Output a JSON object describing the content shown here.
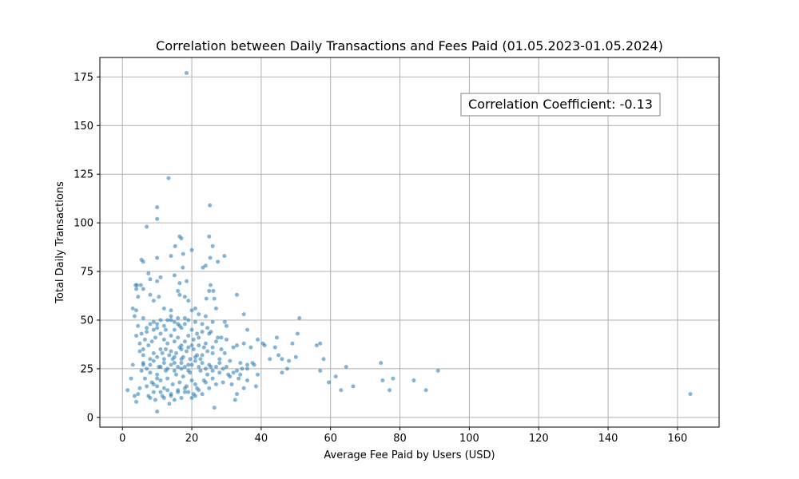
{
  "chart_data": {
    "type": "scatter",
    "title": "Correlation between Daily Transactions and Fees Paid (01.05.2023-01.05.2024)",
    "xlabel": "Average Fee Paid by Users (USD)",
    "ylabel": "Total Daily Transactions",
    "xlim": [
      -6.5,
      172
    ],
    "ylim": [
      -5,
      185
    ],
    "xticks": [
      0,
      20,
      40,
      60,
      80,
      100,
      120,
      140,
      160
    ],
    "yticks": [
      0,
      25,
      50,
      75,
      100,
      125,
      150,
      175
    ],
    "xtick_labels": [
      "0",
      "20",
      "40",
      "60",
      "80",
      "100",
      "120",
      "140",
      "160"
    ],
    "ytick_labels": [
      "0",
      "25",
      "50",
      "75",
      "100",
      "125",
      "150",
      "175"
    ],
    "grid": true,
    "marker_color": "#1f77b4",
    "annotation": {
      "text": "Correlation Coefficient: -0.13",
      "position": "top-right"
    },
    "points": [
      [
        18.5,
        177
      ],
      [
        13.3,
        123
      ],
      [
        25.2,
        109
      ],
      [
        10.0,
        108
      ],
      [
        10.0,
        102
      ],
      [
        7.0,
        98
      ],
      [
        16.5,
        93
      ],
      [
        25.0,
        93
      ],
      [
        17.0,
        92
      ],
      [
        15.2,
        88
      ],
      [
        26.0,
        88
      ],
      [
        20.0,
        86
      ],
      [
        17.5,
        84
      ],
      [
        29.4,
        83
      ],
      [
        14.0,
        83
      ],
      [
        10.0,
        82
      ],
      [
        25.3,
        82
      ],
      [
        5.5,
        81
      ],
      [
        6.0,
        80
      ],
      [
        27.5,
        80
      ],
      [
        24.0,
        78
      ],
      [
        23.2,
        77
      ],
      [
        17.4,
        77
      ],
      [
        7.5,
        74
      ],
      [
        11.0,
        72
      ],
      [
        15.0,
        73
      ],
      [
        3.8,
        68
      ],
      [
        4.2,
        68
      ],
      [
        5.3,
        68
      ],
      [
        25.4,
        68
      ],
      [
        18.5,
        70
      ],
      [
        16.5,
        69
      ],
      [
        8.0,
        71
      ],
      [
        10.0,
        70
      ],
      [
        25.0,
        65
      ],
      [
        26.2,
        65
      ],
      [
        6.0,
        66
      ],
      [
        4.0,
        66
      ],
      [
        16.5,
        63
      ],
      [
        16.0,
        65
      ],
      [
        8.0,
        63
      ],
      [
        10.5,
        62
      ],
      [
        33.0,
        63
      ],
      [
        18.0,
        62
      ],
      [
        19.0,
        60
      ],
      [
        24.2,
        61
      ],
      [
        26.5,
        61
      ],
      [
        4.5,
        62
      ],
      [
        9.0,
        60
      ],
      [
        21.0,
        56
      ],
      [
        12.0,
        56
      ],
      [
        14.0,
        55
      ],
      [
        27.0,
        56
      ],
      [
        3.0,
        56
      ],
      [
        4.0,
        55
      ],
      [
        20.0,
        55
      ],
      [
        22.0,
        53
      ],
      [
        18.0,
        51
      ],
      [
        24.0,
        52
      ],
      [
        35.0,
        53
      ],
      [
        6.0,
        51
      ],
      [
        9.0,
        49
      ],
      [
        14.0,
        50
      ],
      [
        16.0,
        48
      ],
      [
        26.0,
        49
      ],
      [
        29.5,
        49
      ],
      [
        30.0,
        47
      ],
      [
        36.0,
        45
      ],
      [
        20.0,
        45
      ],
      [
        21.5,
        43
      ],
      [
        23.0,
        44
      ],
      [
        25.0,
        43
      ],
      [
        7.0,
        46
      ],
      [
        10.0,
        46
      ],
      [
        12.5,
        45
      ],
      [
        15.0,
        45
      ],
      [
        16.5,
        47
      ],
      [
        18.0,
        48
      ],
      [
        27.5,
        41
      ],
      [
        28.5,
        41
      ],
      [
        30.0,
        40
      ],
      [
        39.0,
        40
      ],
      [
        40.5,
        38
      ],
      [
        35.0,
        38
      ],
      [
        37.0,
        36
      ],
      [
        33.0,
        37
      ],
      [
        32.0,
        36
      ],
      [
        24.0,
        38
      ],
      [
        22.0,
        37
      ],
      [
        20.0,
        37
      ],
      [
        19.0,
        36
      ],
      [
        17.0,
        35
      ],
      [
        14.0,
        34
      ],
      [
        11.0,
        35
      ],
      [
        9.0,
        33
      ],
      [
        6.0,
        35
      ],
      [
        5.0,
        34
      ],
      [
        8.0,
        30
      ],
      [
        10.0,
        31
      ],
      [
        12.0,
        30
      ],
      [
        15.0,
        31
      ],
      [
        17.0,
        30
      ],
      [
        21.0,
        31
      ],
      [
        23.0,
        32
      ],
      [
        26.0,
        33
      ],
      [
        28.0,
        30
      ],
      [
        31.0,
        29
      ],
      [
        34.0,
        28
      ],
      [
        36.0,
        27
      ],
      [
        38.0,
        27
      ],
      [
        42.5,
        30
      ],
      [
        44.5,
        41
      ],
      [
        45.0,
        32
      ],
      [
        46.0,
        30
      ],
      [
        48.0,
        29
      ],
      [
        49.0,
        38
      ],
      [
        50.0,
        31
      ],
      [
        50.5,
        43
      ],
      [
        51.0,
        51
      ],
      [
        56.0,
        37
      ],
      [
        57.0,
        38
      ],
      [
        58.0,
        30
      ],
      [
        57.0,
        24
      ],
      [
        59.5,
        18
      ],
      [
        61.5,
        21
      ],
      [
        63.0,
        14
      ],
      [
        64.5,
        26
      ],
      [
        66.5,
        16
      ],
      [
        74.5,
        28
      ],
      [
        75.0,
        19
      ],
      [
        77.0,
        14
      ],
      [
        78.0,
        20
      ],
      [
        84.0,
        19
      ],
      [
        87.5,
        14
      ],
      [
        91.0,
        24
      ],
      [
        163.7,
        12
      ],
      [
        46.0,
        23
      ],
      [
        47.5,
        25
      ],
      [
        44.0,
        36
      ],
      [
        41.0,
        37
      ],
      [
        39.0,
        22
      ],
      [
        38.5,
        16
      ],
      [
        37.5,
        28
      ],
      [
        36.0,
        19
      ],
      [
        34.5,
        25
      ],
      [
        33.5,
        20
      ],
      [
        33.0,
        12
      ],
      [
        32.5,
        9
      ],
      [
        31.5,
        17
      ],
      [
        30.5,
        22
      ],
      [
        29.0,
        18
      ],
      [
        28.0,
        23
      ],
      [
        27.0,
        17
      ],
      [
        26.5,
        5
      ],
      [
        26.0,
        20
      ],
      [
        25.5,
        26
      ],
      [
        24.5,
        22
      ],
      [
        23.5,
        19
      ],
      [
        22.5,
        24
      ],
      [
        21.5,
        15
      ],
      [
        21.0,
        11
      ],
      [
        20.5,
        12
      ],
      [
        20.0,
        19
      ],
      [
        19.5,
        23
      ],
      [
        19.0,
        27
      ],
      [
        18.5,
        16
      ],
      [
        18.0,
        13
      ],
      [
        17.5,
        21
      ],
      [
        17.0,
        25
      ],
      [
        16.5,
        18
      ],
      [
        16.0,
        14
      ],
      [
        15.5,
        22
      ],
      [
        15.0,
        28
      ],
      [
        14.5,
        17
      ],
      [
        14.0,
        12
      ],
      [
        13.5,
        7
      ],
      [
        13.0,
        20
      ],
      [
        12.5,
        24
      ],
      [
        12.0,
        15
      ],
      [
        11.5,
        11
      ],
      [
        11.0,
        19
      ],
      [
        10.5,
        26
      ],
      [
        10.0,
        22
      ],
      [
        10.0,
        16
      ],
      [
        10.0,
        3
      ],
      [
        9.5,
        9
      ],
      [
        9.0,
        13
      ],
      [
        8.5,
        18
      ],
      [
        8.0,
        23
      ],
      [
        7.5,
        11
      ],
      [
        7.0,
        16
      ],
      [
        6.5,
        20
      ],
      [
        6.0,
        27
      ],
      [
        5.5,
        24
      ],
      [
        5.0,
        15
      ],
      [
        4.5,
        12
      ],
      [
        4.0,
        8
      ],
      [
        3.5,
        11
      ],
      [
        3.0,
        27
      ],
      [
        2.5,
        20
      ],
      [
        1.5,
        14
      ],
      [
        4.0,
        42
      ],
      [
        3.5,
        52
      ],
      [
        4.5,
        47
      ],
      [
        5.5,
        43
      ],
      [
        6.5,
        40
      ],
      [
        7.5,
        37
      ],
      [
        8.5,
        39
      ],
      [
        9.5,
        41
      ],
      [
        11.0,
        43
      ],
      [
        12.0,
        40
      ],
      [
        13.0,
        38
      ],
      [
        14.0,
        42
      ],
      [
        15.0,
        39
      ],
      [
        16.0,
        41
      ],
      [
        17.0,
        37
      ],
      [
        18.0,
        39
      ],
      [
        19.0,
        42
      ],
      [
        20.5,
        40
      ],
      [
        22.0,
        41
      ],
      [
        23.5,
        36
      ],
      [
        24.5,
        34
      ],
      [
        26.0,
        36
      ],
      [
        27.0,
        39
      ],
      [
        28.5,
        35
      ],
      [
        29.5,
        33
      ],
      [
        6.0,
        28
      ],
      [
        7.0,
        25
      ],
      [
        8.0,
        27
      ],
      [
        9.0,
        29
      ],
      [
        11.0,
        26
      ],
      [
        12.0,
        28
      ],
      [
        13.0,
        25
      ],
      [
        14.0,
        27
      ],
      [
        15.0,
        24
      ],
      [
        16.0,
        26
      ],
      [
        17.0,
        28
      ],
      [
        18.0,
        26
      ],
      [
        19.0,
        24
      ],
      [
        20.0,
        27
      ],
      [
        21.0,
        29
      ],
      [
        22.0,
        26
      ],
      [
        23.0,
        28
      ],
      [
        24.0,
        25
      ],
      [
        25.0,
        27
      ],
      [
        26.0,
        24
      ],
      [
        27.0,
        26
      ],
      [
        28.0,
        28
      ],
      [
        29.0,
        25
      ],
      [
        30.0,
        26
      ],
      [
        31.0,
        21
      ],
      [
        32.0,
        23
      ],
      [
        33.0,
        24
      ],
      [
        34.0,
        22
      ],
      [
        35.0,
        15
      ],
      [
        36.0,
        25
      ],
      [
        11.0,
        13
      ],
      [
        12.0,
        10
      ],
      [
        13.0,
        14
      ],
      [
        14.0,
        11
      ],
      [
        15.0,
        9
      ],
      [
        16.0,
        13
      ],
      [
        17.0,
        10
      ],
      [
        18.0,
        15
      ],
      [
        19.0,
        13
      ],
      [
        20.0,
        10
      ],
      [
        21.0,
        17
      ],
      [
        22.0,
        14
      ],
      [
        23.0,
        12
      ],
      [
        24.0,
        18
      ],
      [
        25.0,
        15
      ],
      [
        8.0,
        10
      ],
      [
        9.0,
        17
      ],
      [
        10.0,
        20
      ],
      [
        11.5,
        33
      ],
      [
        12.5,
        35
      ],
      [
        13.5,
        32
      ],
      [
        14.5,
        30
      ],
      [
        15.5,
        33
      ],
      [
        16.5,
        36
      ],
      [
        17.5,
        31
      ],
      [
        18.5,
        34
      ],
      [
        19.5,
        30
      ],
      [
        20.5,
        35
      ],
      [
        21.5,
        32
      ],
      [
        22.5,
        30
      ],
      [
        5.0,
        38
      ],
      [
        6.0,
        32
      ],
      [
        7.0,
        44
      ],
      [
        8.0,
        48
      ],
      [
        9.0,
        45
      ],
      [
        10.0,
        48
      ],
      [
        11.0,
        50
      ],
      [
        12.0,
        47
      ],
      [
        13.0,
        50
      ],
      [
        14.0,
        52
      ],
      [
        15.0,
        49
      ],
      [
        16.0,
        51
      ],
      [
        17.0,
        46
      ],
      [
        19.0,
        50
      ],
      [
        21.0,
        49
      ],
      [
        23.0,
        48
      ],
      [
        24.5,
        46
      ],
      [
        25.5,
        44
      ]
    ]
  }
}
